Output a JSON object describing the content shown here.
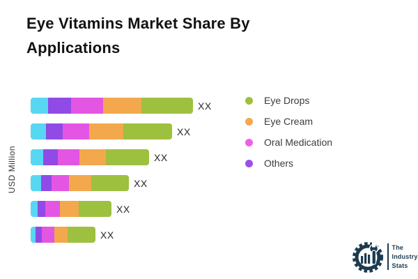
{
  "title": "Eye Vitamins Market Share By Applications",
  "legend": [
    {
      "label": "Eye Drops",
      "color": "#9dc03f"
    },
    {
      "label": "Eye Cream",
      "color": "#f3a84d"
    },
    {
      "label": "Oral Medication",
      "color": "#ee60ea"
    },
    {
      "label": "Others",
      "color": "#9a50e6"
    }
  ],
  "chart_data": {
    "type": "bar",
    "orientation": "horizontal",
    "stacked": true,
    "title": "Eye Vitamins Market Share By Applications",
    "xlabel": "",
    "ylabel": "USD Million",
    "grid": false,
    "legend_position": "right",
    "categories": [
      "",
      "",
      "",
      "",
      "",
      ""
    ],
    "value_labels": [
      "XX",
      "XX",
      "XX",
      "XX",
      "XX",
      "XX"
    ],
    "series": [
      {
        "name": "",
        "color": "#57d7f2",
        "values": [
          25,
          22,
          18,
          15,
          10,
          7
        ]
      },
      {
        "name": "Others",
        "color": "#904ae6",
        "values": [
          33,
          24,
          21,
          15,
          11,
          9
        ]
      },
      {
        "name": "Oral Medication",
        "color": "#e356e3",
        "values": [
          46,
          38,
          31,
          25,
          21,
          18
        ]
      },
      {
        "name": "Eye Cream",
        "color": "#f3a84d",
        "values": [
          55,
          49,
          38,
          32,
          27,
          19
        ]
      },
      {
        "name": "Eye Drops",
        "color": "#9dc03f",
        "values": [
          74,
          70,
          62,
          54,
          47,
          40
        ]
      }
    ]
  },
  "logo": {
    "lines": [
      "The",
      "Industry",
      "Stats"
    ]
  }
}
